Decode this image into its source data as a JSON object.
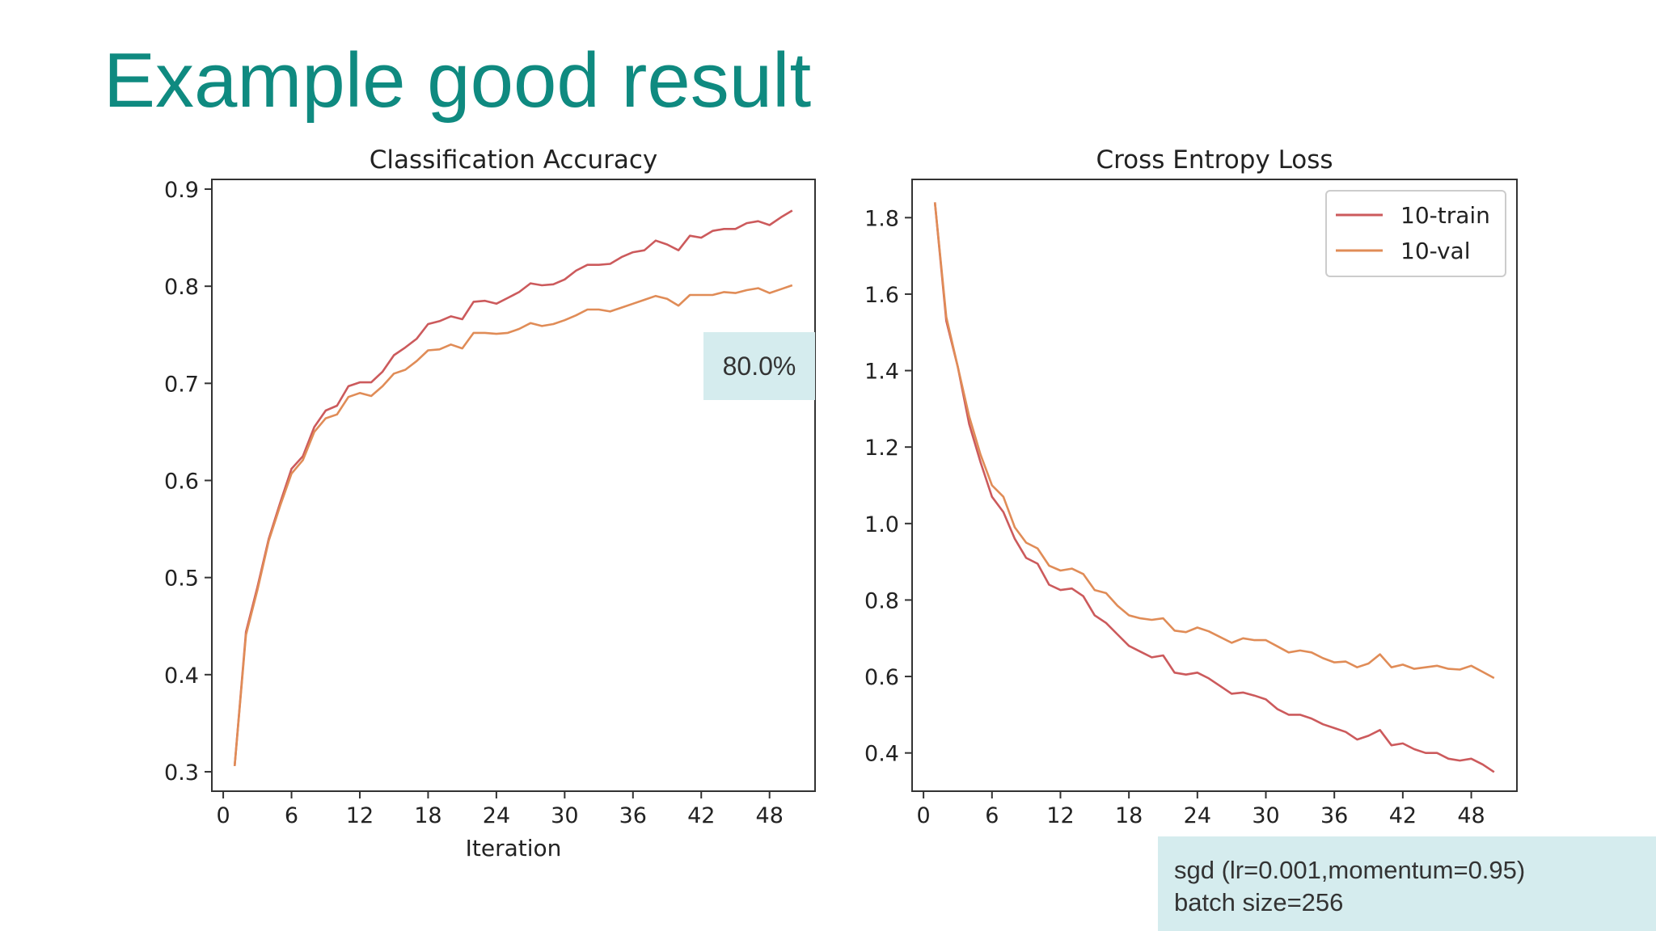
{
  "slide": {
    "title": "Example good result",
    "callout": "80.0%",
    "note_line1": "sgd (lr=0.001,momentum=0.95)",
    "note_line2": "batch size=256"
  },
  "colors": {
    "title": "#0f8a80",
    "train": "#cc5a5c",
    "val": "#e08c57",
    "callout_bg": "#d5ecee"
  },
  "chart_data": [
    {
      "type": "line",
      "title": "Classification Accuracy",
      "xlabel": "Iteration",
      "ylabel": "",
      "xlim": [
        -1,
        52
      ],
      "ylim": [
        0.28,
        0.91
      ],
      "xticks": [
        0,
        6,
        12,
        18,
        24,
        30,
        36,
        42,
        48
      ],
      "yticks": [
        0.3,
        0.4,
        0.5,
        0.6,
        0.7,
        0.8,
        0.9
      ],
      "ytick_labels": [
        "0.3",
        "0.4",
        "0.5",
        "0.6",
        "0.7",
        "0.8",
        "0.9"
      ],
      "x": [
        1,
        2,
        3,
        4,
        5,
        6,
        7,
        8,
        9,
        10,
        11,
        12,
        13,
        14,
        15,
        16,
        17,
        18,
        19,
        20,
        21,
        22,
        23,
        24,
        25,
        26,
        27,
        28,
        29,
        30,
        31,
        32,
        33,
        34,
        35,
        36,
        37,
        38,
        39,
        40,
        41,
        42,
        43,
        44,
        45,
        46,
        47,
        48,
        49,
        50
      ],
      "series": [
        {
          "name": "10-train",
          "values": [
            0.306,
            0.444,
            0.49,
            0.54,
            0.577,
            0.612,
            0.625,
            0.655,
            0.672,
            0.677,
            0.697,
            0.701,
            0.701,
            0.712,
            0.729,
            0.737,
            0.746,
            0.761,
            0.764,
            0.769,
            0.766,
            0.784,
            0.785,
            0.782,
            0.788,
            0.794,
            0.803,
            0.801,
            0.802,
            0.807,
            0.816,
            0.822,
            0.822,
            0.823,
            0.83,
            0.835,
            0.837,
            0.847,
            0.843,
            0.837,
            0.852,
            0.85,
            0.857,
            0.859,
            0.859,
            0.865,
            0.867,
            0.863,
            0.871,
            0.878
          ]
        },
        {
          "name": "10-val",
          "values": [
            0.306,
            0.441,
            0.487,
            0.538,
            0.574,
            0.607,
            0.621,
            0.65,
            0.664,
            0.668,
            0.686,
            0.69,
            0.687,
            0.697,
            0.71,
            0.714,
            0.723,
            0.734,
            0.735,
            0.74,
            0.736,
            0.752,
            0.752,
            0.751,
            0.752,
            0.756,
            0.762,
            0.759,
            0.761,
            0.765,
            0.77,
            0.776,
            0.776,
            0.774,
            0.778,
            0.782,
            0.786,
            0.79,
            0.787,
            0.78,
            0.791,
            0.791,
            0.791,
            0.794,
            0.793,
            0.796,
            0.798,
            0.793,
            0.797,
            0.801
          ]
        }
      ]
    },
    {
      "type": "line",
      "title": "Cross Entropy Loss",
      "xlabel": "",
      "ylabel": "",
      "xlim": [
        -1,
        52
      ],
      "ylim": [
        0.3,
        1.9
      ],
      "xticks": [
        0,
        6,
        12,
        18,
        24,
        30,
        36,
        42,
        48
      ],
      "yticks": [
        0.4,
        0.6,
        0.8,
        1.0,
        1.2,
        1.4,
        1.6,
        1.8
      ],
      "ytick_labels": [
        "0.4",
        "0.6",
        "0.8",
        "1.0",
        "1.2",
        "1.4",
        "1.6",
        "1.8"
      ],
      "legend": {
        "position": "top-right",
        "entries": [
          "10-train",
          "10-val"
        ]
      },
      "x": [
        1,
        2,
        3,
        4,
        5,
        6,
        7,
        8,
        9,
        10,
        11,
        12,
        13,
        14,
        15,
        16,
        17,
        18,
        19,
        20,
        21,
        22,
        23,
        24,
        25,
        26,
        27,
        28,
        29,
        30,
        31,
        32,
        33,
        34,
        35,
        36,
        37,
        38,
        39,
        40,
        41,
        42,
        43,
        44,
        45,
        46,
        47,
        48,
        49,
        50
      ],
      "series": [
        {
          "name": "10-train",
          "values": [
            1.84,
            1.53,
            1.41,
            1.26,
            1.16,
            1.07,
            1.03,
            0.96,
            0.91,
            0.895,
            0.84,
            0.826,
            0.83,
            0.81,
            0.76,
            0.74,
            0.71,
            0.68,
            0.665,
            0.65,
            0.655,
            0.61,
            0.605,
            0.61,
            0.595,
            0.575,
            0.555,
            0.558,
            0.55,
            0.54,
            0.515,
            0.5,
            0.5,
            0.49,
            0.475,
            0.465,
            0.455,
            0.435,
            0.445,
            0.46,
            0.42,
            0.425,
            0.41,
            0.4,
            0.4,
            0.385,
            0.38,
            0.385,
            0.37,
            0.35
          ]
        },
        {
          "name": "10-val",
          "values": [
            1.84,
            1.54,
            1.41,
            1.28,
            1.18,
            1.1,
            1.07,
            0.99,
            0.95,
            0.935,
            0.89,
            0.877,
            0.882,
            0.868,
            0.826,
            0.818,
            0.785,
            0.76,
            0.752,
            0.748,
            0.752,
            0.72,
            0.716,
            0.728,
            0.718,
            0.703,
            0.688,
            0.7,
            0.695,
            0.695,
            0.679,
            0.663,
            0.668,
            0.663,
            0.648,
            0.637,
            0.639,
            0.624,
            0.634,
            0.658,
            0.624,
            0.631,
            0.62,
            0.624,
            0.628,
            0.62,
            0.618,
            0.628,
            0.612,
            0.596
          ]
        }
      ]
    }
  ]
}
